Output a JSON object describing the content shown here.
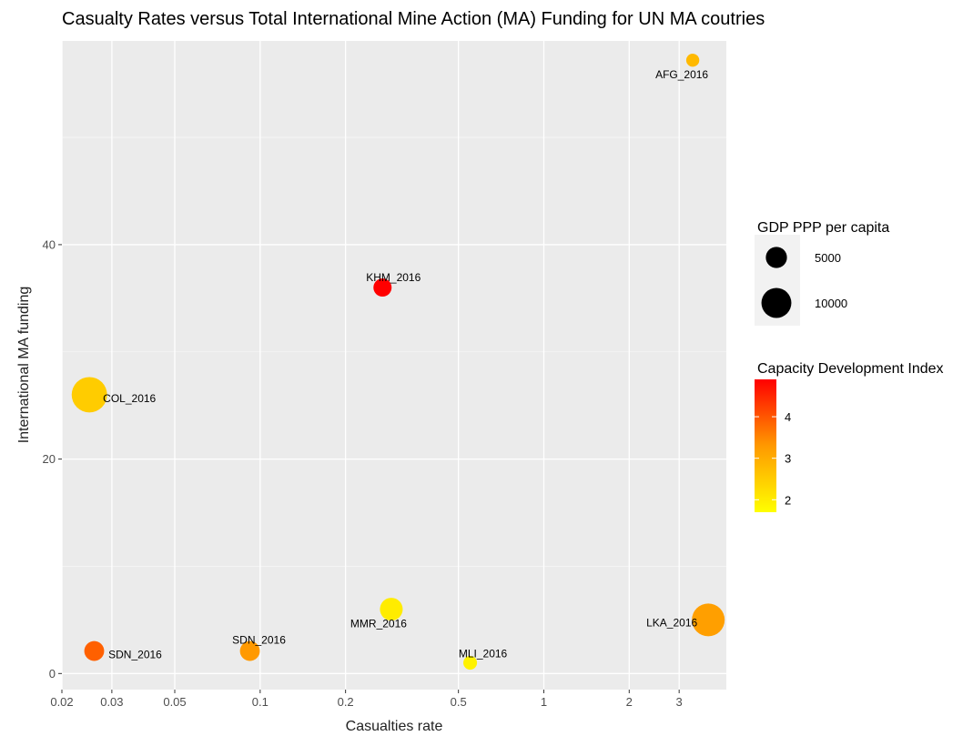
{
  "chart_data": {
    "type": "scatter",
    "title": "Casualty Rates versus Total International Mine Action (MA) Funding for UN MA coutries",
    "xlabel": "Casualties rate",
    "ylabel": "International MA funding",
    "x_scale": "log",
    "xlim": [
      0.02,
      4.4
    ],
    "ylim": [
      -1.5,
      59
    ],
    "x_ticks": [
      {
        "value": 0.02,
        "label": "0.02"
      },
      {
        "value": 0.03,
        "label": "0.03"
      },
      {
        "value": 0.05,
        "label": "0.05"
      },
      {
        "value": 0.1,
        "label": "0.1"
      },
      {
        "value": 0.2,
        "label": "0.2"
      },
      {
        "value": 0.5,
        "label": "0.5"
      },
      {
        "value": 1,
        "label": "1"
      },
      {
        "value": 2,
        "label": "2"
      },
      {
        "value": 3,
        "label": "3"
      }
    ],
    "y_ticks": [
      {
        "value": 0,
        "label": "0"
      },
      {
        "value": 20,
        "label": "20"
      },
      {
        "value": 40,
        "label": "40"
      }
    ],
    "grid": true,
    "points": [
      {
        "label": "AFG_2016",
        "x": 3.35,
        "y": 57.2,
        "gdp": 1900,
        "cdi": 2.8
      },
      {
        "label": "KHM_2016",
        "x": 0.27,
        "y": 36.0,
        "gdp": 3700,
        "cdi": 4.9
      },
      {
        "label": "COL_2016",
        "x": 0.025,
        "y": 26.0,
        "gdp": 14000,
        "cdi": 2.5
      },
      {
        "label": "MMR_2016",
        "x": 0.29,
        "y": 6.0,
        "gdp": 5800,
        "cdi": 2.0
      },
      {
        "label": "LKA_2016",
        "x": 3.8,
        "y": 5.0,
        "gdp": 12000,
        "cdi": 3.2
      },
      {
        "label": "SDN_2016",
        "x": 0.026,
        "y": 2.1,
        "gdp": 4400,
        "cdi": 3.9
      },
      {
        "label": "SDN_2016",
        "x": 0.092,
        "y": 2.1,
        "gdp": 4400,
        "cdi": 3.3
      },
      {
        "label": "MLI_2016",
        "x": 0.55,
        "y": 1.0,
        "gdp": 2100,
        "cdi": 1.9
      }
    ],
    "size_legend": {
      "title": "GDP PPP per capita",
      "entries": [
        {
          "value": 5000,
          "label": "5000"
        },
        {
          "value": 10000,
          "label": "10000"
        }
      ]
    },
    "color_legend": {
      "title": "Capacity Development Index",
      "min": 1.7,
      "max": 4.9,
      "low_color": "#FFFF00",
      "high_color": "#FF0000",
      "ticks": [
        {
          "value": 2,
          "label": "2"
        },
        {
          "value": 3,
          "label": "3"
        },
        {
          "value": 4,
          "label": "4"
        }
      ]
    },
    "panel_color": "#EBEBEB",
    "grid_color": "#FFFFFF"
  }
}
